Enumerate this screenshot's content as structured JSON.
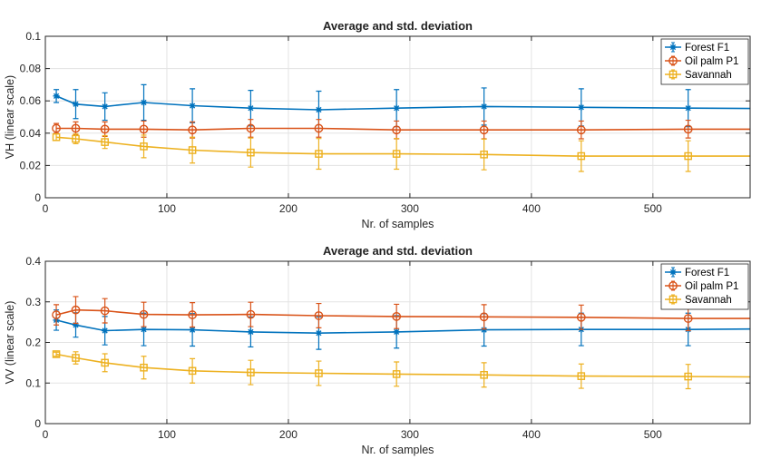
{
  "chart_data": [
    {
      "type": "line",
      "title": "Average and std. deviation",
      "xlabel": "Nr. of samples",
      "ylabel": "VH (linear scale)",
      "xlim": [
        0,
        580
      ],
      "ylim": [
        0,
        0.1
      ],
      "xticks": [
        0,
        100,
        200,
        300,
        400,
        500
      ],
      "yticks": [
        0,
        0.02,
        0.04,
        0.06,
        0.08,
        0.1
      ],
      "xtick_labels": [
        "0",
        "100",
        "200",
        "300",
        "400",
        "500"
      ],
      "ytick_labels": [
        "0",
        "0.02",
        "0.04",
        "0.06",
        "0.08",
        "0.1"
      ],
      "grid": true,
      "legend_position": "top-right",
      "x": [
        9,
        25,
        49,
        81,
        121,
        169,
        225,
        289,
        361,
        441,
        529
      ],
      "series": [
        {
          "name": "Forest F1",
          "color": "#0072BD",
          "marker": "star",
          "values": [
            0.063,
            0.058,
            0.0565,
            0.059,
            0.057,
            0.0555,
            0.0545,
            0.0555,
            0.0565,
            0.056,
            0.0555
          ],
          "error": [
            0.004,
            0.009,
            0.0085,
            0.011,
            0.0105,
            0.011,
            0.0115,
            0.0115,
            0.0115,
            0.0115,
            0.0115
          ],
          "tail": 0.0553
        },
        {
          "name": "Oil palm P1",
          "color": "#D95319",
          "marker": "circle",
          "values": [
            0.043,
            0.043,
            0.0425,
            0.0425,
            0.042,
            0.043,
            0.043,
            0.042,
            0.042,
            0.042,
            0.0425
          ],
          "error": [
            0.003,
            0.004,
            0.0045,
            0.005,
            0.005,
            0.0055,
            0.0055,
            0.0055,
            0.0055,
            0.0055,
            0.0055
          ],
          "tail": 0.0425
        },
        {
          "name": "Savannah",
          "color": "#EDB120",
          "marker": "square",
          "values": [
            0.0375,
            0.0365,
            0.0345,
            0.0318,
            0.0295,
            0.028,
            0.0272,
            0.0272,
            0.0268,
            0.0258,
            0.0258
          ],
          "error": [
            0.002,
            0.003,
            0.004,
            0.007,
            0.008,
            0.009,
            0.0095,
            0.0095,
            0.0095,
            0.0095,
            0.0095
          ],
          "tail": 0.0258
        }
      ]
    },
    {
      "type": "line",
      "title": "Average and std. deviation",
      "xlabel": "Nr. of samples",
      "ylabel": "VV (linear scale)",
      "xlim": [
        0,
        580
      ],
      "ylim": [
        0,
        0.4
      ],
      "xticks": [
        0,
        100,
        200,
        300,
        400,
        500
      ],
      "yticks": [
        0,
        0.1,
        0.2,
        0.3,
        0.4
      ],
      "xtick_labels": [
        "0",
        "100",
        "200",
        "300",
        "400",
        "500"
      ],
      "ytick_labels": [
        "0",
        "0.1",
        "0.2",
        "0.3",
        "0.4"
      ],
      "grid": true,
      "legend_position": "top-right",
      "x": [
        9,
        25,
        49,
        81,
        121,
        169,
        225,
        289,
        361,
        441,
        529
      ],
      "series": [
        {
          "name": "Forest F1",
          "color": "#0072BD",
          "marker": "star",
          "values": [
            0.255,
            0.243,
            0.229,
            0.232,
            0.231,
            0.226,
            0.223,
            0.226,
            0.231,
            0.232,
            0.232
          ],
          "error": [
            0.025,
            0.03,
            0.035,
            0.04,
            0.04,
            0.037,
            0.04,
            0.04,
            0.04,
            0.04,
            0.04
          ],
          "tail": 0.233
        },
        {
          "name": "Oil palm P1",
          "color": "#D95319",
          "marker": "circle",
          "values": [
            0.268,
            0.28,
            0.278,
            0.269,
            0.268,
            0.269,
            0.266,
            0.264,
            0.263,
            0.262,
            0.259
          ],
          "error": [
            0.025,
            0.033,
            0.03,
            0.03,
            0.03,
            0.03,
            0.03,
            0.03,
            0.03,
            0.03,
            0.03
          ],
          "tail": 0.259
        },
        {
          "name": "Savannah",
          "color": "#EDB120",
          "marker": "square",
          "values": [
            0.171,
            0.162,
            0.15,
            0.138,
            0.13,
            0.126,
            0.124,
            0.122,
            0.12,
            0.117,
            0.116
          ],
          "error": [
            0.005,
            0.015,
            0.022,
            0.028,
            0.03,
            0.03,
            0.03,
            0.03,
            0.03,
            0.03,
            0.03
          ],
          "tail": 0.115
        }
      ]
    }
  ]
}
